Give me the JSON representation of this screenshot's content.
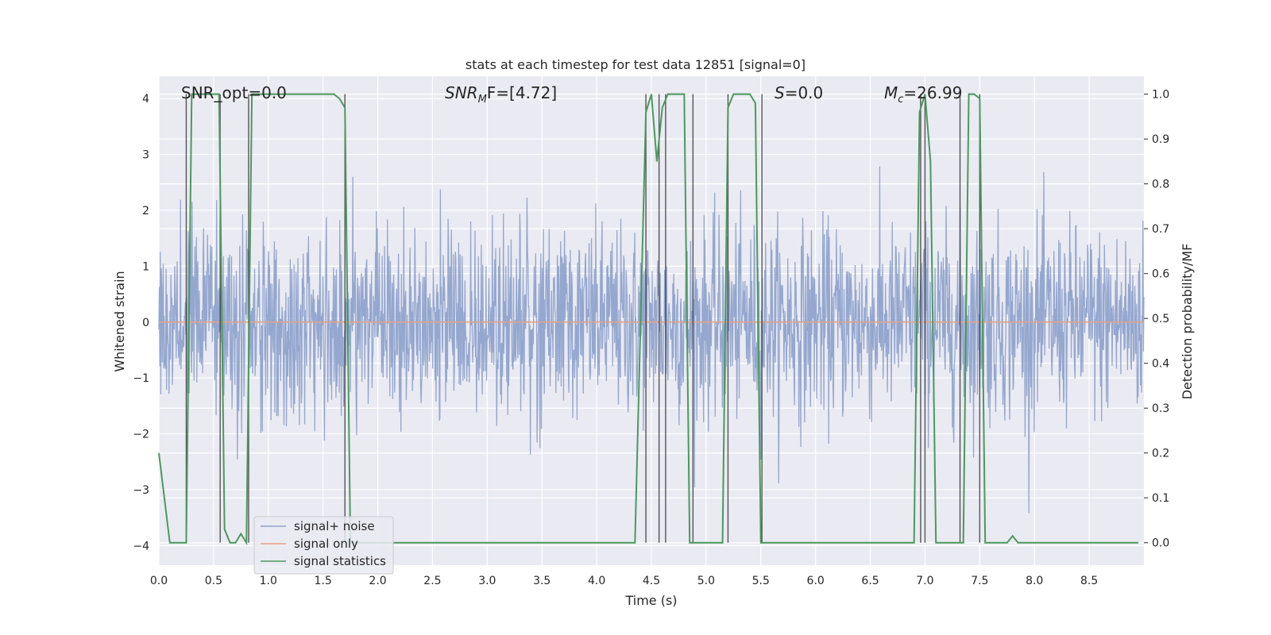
{
  "chart_data": {
    "type": "line",
    "title": "stats at each timestep for test data 12851 [signal=0]",
    "xlabel": "Time (s)",
    "ylabel": "Whitened strain",
    "y2label": "Detection probability/MF",
    "xlim": [
      0.0,
      9.0
    ],
    "ylim": [
      -4.35,
      4.4
    ],
    "y2lim": [
      -0.05,
      1.04
    ],
    "xticks": [
      "0.0",
      "0.5",
      "1.0",
      "1.5",
      "2.0",
      "2.5",
      "3.0",
      "3.5",
      "4.0",
      "4.5",
      "5.0",
      "5.5",
      "6.0",
      "6.5",
      "7.0",
      "7.5",
      "8.0",
      "8.5"
    ],
    "yticks": [
      "4",
      "3",
      "2",
      "1",
      "0",
      "−1",
      "−2",
      "−3",
      "−4"
    ],
    "y2ticks": [
      "1.0",
      "0.9",
      "0.8",
      "0.7",
      "0.6",
      "0.5",
      "0.4",
      "0.3",
      "0.2",
      "0.1",
      "0.0"
    ],
    "grid": true,
    "legend_position": "lower-left",
    "annotations": {
      "snr_opt": "SNR_opt=0.0",
      "snr_mf_base": "SNR",
      "snr_mf_sub": "M",
      "snr_mf_tail": "F=[4.72]",
      "s_main": "S",
      "s_tail": "=0.0",
      "mc_main": "M",
      "mc_sub": "c",
      "mc_tail": "=26.99"
    },
    "series": [
      {
        "name": "signal+ noise",
        "color": "#8fa3cc",
        "kind": "noise",
        "approx_std": 0.85,
        "approx_range": [
          -3.6,
          3.5
        ],
        "n_samples": 2048
      },
      {
        "name": "signal only",
        "color": "#e8a07f",
        "x": [
          0.0,
          9.0
        ],
        "y": [
          0.0,
          0.0
        ]
      },
      {
        "name": "signal statistics",
        "color": "#4a9a5c",
        "axis": "right",
        "x": [
          0.0,
          0.05,
          0.1,
          0.15,
          0.2,
          0.25,
          0.3,
          0.35,
          0.4,
          0.45,
          0.5,
          0.55,
          0.6,
          0.65,
          0.7,
          0.75,
          0.8,
          0.85,
          0.9,
          0.95,
          1.0,
          1.2,
          1.4,
          1.6,
          1.65,
          1.7,
          1.75,
          1.8,
          2.0,
          2.5,
          3.0,
          3.5,
          4.0,
          4.35,
          4.45,
          4.5,
          4.55,
          4.6,
          4.65,
          4.7,
          4.75,
          4.8,
          4.85,
          4.9,
          4.95,
          5.0,
          5.1,
          5.15,
          5.2,
          5.25,
          5.3,
          5.35,
          5.4,
          5.45,
          5.5,
          5.55,
          5.6,
          5.65,
          5.7,
          6.0,
          6.5,
          6.9,
          6.95,
          7.0,
          7.05,
          7.1,
          7.15,
          7.2,
          7.25,
          7.3,
          7.35,
          7.4,
          7.45,
          7.5,
          7.55,
          7.6,
          7.7,
          7.75,
          7.8,
          7.85,
          7.9,
          8.0,
          8.5,
          8.95
        ],
        "y": [
          0.2,
          0.1,
          0.0,
          0.0,
          0.0,
          0.0,
          1.0,
          1.0,
          1.0,
          1.0,
          1.0,
          1.0,
          0.03,
          0.0,
          0.0,
          0.02,
          0.0,
          1.0,
          1.0,
          1.0,
          1.0,
          1.0,
          1.0,
          1.0,
          0.99,
          0.97,
          0.0,
          0.0,
          0.0,
          0.0,
          0.0,
          0.0,
          0.0,
          0.0,
          0.96,
          1.0,
          0.85,
          0.97,
          1.0,
          1.0,
          1.0,
          1.0,
          0.0,
          0.0,
          0.0,
          0.0,
          0.0,
          0.0,
          0.97,
          1.0,
          1.0,
          1.0,
          1.0,
          0.98,
          0.0,
          0.0,
          0.0,
          0.0,
          0.0,
          0.0,
          0.0,
          0.0,
          0.96,
          1.0,
          0.85,
          0.0,
          0.0,
          0.0,
          0.0,
          0.0,
          0.0,
          1.0,
          1.0,
          0.99,
          0.0,
          0.0,
          0.0,
          0.0,
          0.015,
          0.0,
          0.0,
          0.0,
          0.0,
          0.0
        ]
      }
    ],
    "vlines": [
      0.25,
      0.56,
      0.82,
      1.7,
      4.45,
      4.57,
      4.63,
      4.88,
      5.2,
      5.51,
      6.96,
      7.0,
      7.32,
      7.5
    ]
  }
}
